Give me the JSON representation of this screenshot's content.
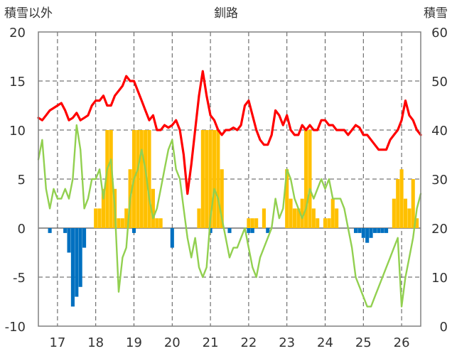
{
  "chart_data": {
    "type": "combo",
    "title": "釧路",
    "left_axis_label": "積雪以外",
    "right_axis_label": "積雪",
    "left_ylim": [
      -10,
      20
    ],
    "left_ticks": [
      -10,
      -5,
      0,
      5,
      10,
      15,
      20
    ],
    "right_ylim": [
      0,
      60
    ],
    "right_ticks": [
      0,
      10,
      20,
      30,
      40,
      50,
      60
    ],
    "x_range": [
      16.5,
      26.5
    ],
    "x_ticks": [
      "17",
      "18",
      "19",
      "20",
      "21",
      "22",
      "23",
      "24",
      "25",
      "26"
    ],
    "grid": "dashed vertical at each year; horizontal at every 5 (left axis)",
    "colors": {
      "red": "#ff0000",
      "green": "#92d050",
      "orange": "#ffc000",
      "blue": "#0070c0"
    },
    "series": [
      {
        "color": "red",
        "kind": "line",
        "x": [
          16.5,
          16.6,
          16.7,
          16.8,
          16.9,
          17.0,
          17.1,
          17.2,
          17.3,
          17.4,
          17.5,
          17.6,
          17.7,
          17.8,
          17.9,
          18.0,
          18.1,
          18.2,
          18.3,
          18.4,
          18.5,
          18.6,
          18.7,
          18.8,
          18.9,
          19.0,
          19.1,
          19.2,
          19.3,
          19.4,
          19.5,
          19.6,
          19.7,
          19.8,
          19.9,
          20.0,
          20.1,
          20.2,
          20.3,
          20.4,
          20.5,
          20.6,
          20.7,
          20.8,
          20.9,
          21.0,
          21.1,
          21.2,
          21.3,
          21.4,
          21.5,
          21.6,
          21.7,
          21.8,
          21.9,
          22.0,
          22.1,
          22.2,
          22.3,
          22.4,
          22.5,
          22.6,
          22.7,
          22.8,
          22.9,
          23.0,
          23.1,
          23.2,
          23.3,
          23.4,
          23.5,
          23.6,
          23.7,
          23.8,
          23.9,
          24.0,
          24.1,
          24.2,
          24.3,
          24.4,
          24.5,
          24.6,
          24.7,
          24.8,
          24.9,
          25.0,
          25.1,
          25.2,
          25.3,
          25.4,
          25.5,
          25.6,
          25.7,
          25.8,
          25.9,
          26.0,
          26.1,
          26.2,
          26.3,
          26.4,
          26.5
        ],
        "y": [
          42.5,
          42,
          43,
          44,
          44.5,
          45,
          45.5,
          44,
          42,
          42.5,
          43.5,
          42,
          42.5,
          43,
          45,
          46,
          46,
          47,
          45,
          45,
          47,
          48,
          49,
          51,
          50,
          50,
          48,
          46,
          44,
          42,
          43,
          40,
          40,
          41,
          40.5,
          41,
          42,
          40,
          35,
          27,
          33,
          40,
          47,
          52,
          47,
          43,
          42,
          40,
          39,
          40,
          40,
          40.5,
          40,
          41,
          45,
          46,
          43,
          40,
          38,
          37,
          37,
          39,
          44,
          43,
          41,
          43,
          40,
          39,
          39,
          41,
          40,
          41,
          40,
          40,
          42,
          42,
          41,
          41,
          40,
          40,
          40,
          39,
          40,
          41,
          40.5,
          39,
          39,
          38,
          37,
          36,
          36,
          36,
          38,
          39,
          40,
          42,
          46,
          43,
          42,
          40,
          39
        ]
      },
      {
        "color": "green",
        "kind": "line",
        "x": [
          16.5,
          16.6,
          16.7,
          16.8,
          16.9,
          17.0,
          17.1,
          17.2,
          17.3,
          17.4,
          17.5,
          17.6,
          17.7,
          17.8,
          17.9,
          18.0,
          18.1,
          18.2,
          18.3,
          18.4,
          18.5,
          18.6,
          18.7,
          18.8,
          18.9,
          19.0,
          19.1,
          19.2,
          19.3,
          19.4,
          19.5,
          19.6,
          19.7,
          19.8,
          19.9,
          20.0,
          20.1,
          20.2,
          20.3,
          20.4,
          20.5,
          20.6,
          20.7,
          20.8,
          20.9,
          21.0,
          21.1,
          21.2,
          21.3,
          21.4,
          21.5,
          21.6,
          21.7,
          21.8,
          21.9,
          22.0,
          22.1,
          22.2,
          22.3,
          22.4,
          22.5,
          22.6,
          22.7,
          22.8,
          22.9,
          23.0,
          23.1,
          23.2,
          23.3,
          23.4,
          23.5,
          23.6,
          23.7,
          23.8,
          23.9,
          24.0,
          24.1,
          24.2,
          24.3,
          24.4,
          24.5,
          24.6,
          24.7,
          24.8,
          24.9,
          25.0,
          25.1,
          25.2,
          25.3,
          25.4,
          25.5,
          25.6,
          25.7,
          25.8,
          25.9,
          26.0,
          26.1,
          26.2,
          26.3,
          26.4,
          26.5
        ],
        "y": [
          7,
          9,
          4,
          2,
          4,
          3,
          3,
          4,
          3,
          5,
          10.5,
          8,
          2,
          3,
          5,
          5,
          6,
          3,
          6,
          7,
          2,
          -6.5,
          -3,
          -2,
          3,
          5,
          6,
          8,
          6,
          3,
          1,
          2,
          4,
          6,
          8,
          9,
          6,
          5,
          2,
          -1,
          -3,
          -1,
          -4,
          -5,
          -4,
          1,
          4,
          3,
          1,
          -1,
          -3,
          -2,
          -2,
          -1,
          0,
          -2,
          -4,
          -5,
          -3,
          -2,
          -1,
          0,
          3,
          1,
          2,
          6,
          5,
          3,
          2,
          1,
          2,
          4,
          3,
          4,
          5,
          4,
          5,
          3,
          3,
          3,
          2,
          0,
          -2,
          -5,
          -6,
          -7,
          -8,
          -8,
          -7,
          -6,
          -5,
          -4,
          -3,
          -2,
          -1,
          -8,
          -5,
          -3,
          -1,
          2,
          3.5
        ]
      },
      {
        "color": "orange",
        "kind": "bar",
        "x": [
          18.0,
          18.1,
          18.2,
          18.3,
          18.4,
          18.5,
          18.6,
          18.7,
          18.8,
          18.9,
          19.0,
          19.1,
          19.2,
          19.3,
          19.4,
          19.5,
          19.6,
          19.7,
          20.7,
          20.8,
          20.9,
          21.0,
          21.1,
          21.2,
          21.3,
          22.0,
          22.1,
          22.2,
          22.4,
          23.0,
          23.1,
          23.2,
          23.3,
          23.4,
          23.5,
          23.6,
          23.7,
          23.8,
          24.0,
          24.1,
          24.2,
          24.3,
          25.8,
          25.9,
          26.0,
          26.1,
          26.2,
          26.3,
          26.4
        ],
        "y": [
          2,
          2,
          4,
          10,
          10,
          4,
          1,
          1,
          2,
          6,
          10,
          10,
          10,
          10,
          10,
          4,
          1,
          1,
          2,
          10,
          10,
          10,
          10,
          10,
          6,
          1,
          1,
          1,
          2,
          6,
          3,
          2,
          2,
          3,
          10,
          10,
          2,
          1,
          1,
          1,
          3,
          2,
          3,
          5,
          6,
          3,
          2,
          5,
          1
        ]
      },
      {
        "color": "blue",
        "kind": "bar",
        "x": [
          16.8,
          17.2,
          17.3,
          17.4,
          17.5,
          17.6,
          17.7,
          19.0,
          20.0,
          21.0,
          21.5,
          22.0,
          22.1,
          22.5,
          24.8,
          24.9,
          25.0,
          25.1,
          25.2,
          25.3,
          25.4,
          25.5,
          25.6
        ],
        "y": [
          -0.5,
          -0.5,
          -2.5,
          -8,
          -7,
          -6,
          -2,
          -0.5,
          -2,
          -0.5,
          -0.5,
          -0.5,
          -0.5,
          -0.5,
          -0.5,
          -0.5,
          -1,
          -1.5,
          -1,
          -0.5,
          -0.5,
          -0.5,
          -0.5
        ]
      }
    ]
  }
}
